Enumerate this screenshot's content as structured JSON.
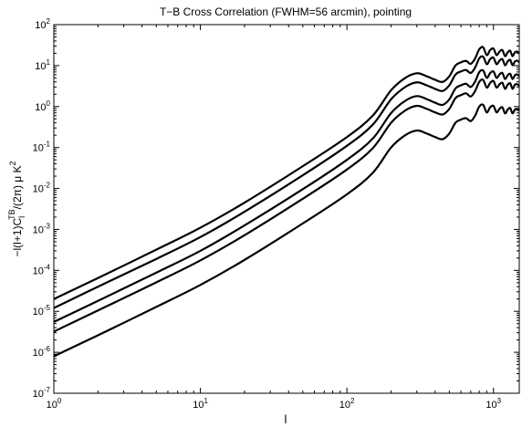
{
  "chart_data": {
    "type": "line",
    "title": "T−B Cross Correlation (FWHM=56 arcmin), pointing",
    "xlabel": "l",
    "ylabel_parts": {
      "prefix": "−l(l+1)C",
      "sub": "l",
      "sup": "TB",
      "middle": "/(2π) μ K",
      "sup2": "2"
    },
    "xscale": "log",
    "yscale": "log",
    "xlim": [
      1,
      1500
    ],
    "ylim": [
      1e-07,
      100
    ],
    "grid": false,
    "x_ticks": [
      {
        "value": 1,
        "base": "10",
        "exp": "0"
      },
      {
        "value": 10,
        "base": "10",
        "exp": "1"
      },
      {
        "value": 100,
        "base": "10",
        "exp": "2"
      },
      {
        "value": 1000,
        "base": "10",
        "exp": "3"
      }
    ],
    "y_ticks": [
      {
        "value": 1e-07,
        "base": "10",
        "exp": "-7"
      },
      {
        "value": 1e-06,
        "base": "10",
        "exp": "-6"
      },
      {
        "value": 1e-05,
        "base": "10",
        "exp": "-5"
      },
      {
        "value": 0.0001,
        "base": "10",
        "exp": "-4"
      },
      {
        "value": 0.001,
        "base": "10",
        "exp": "-3"
      },
      {
        "value": 0.01,
        "base": "10",
        "exp": "-2"
      },
      {
        "value": 0.1,
        "base": "10",
        "exp": "-1"
      },
      {
        "value": 1,
        "base": "10",
        "exp": "0"
      },
      {
        "value": 10,
        "base": "10",
        "exp": "1"
      },
      {
        "value": 100,
        "base": "10",
        "exp": "2"
      }
    ],
    "x": [
      1,
      2,
      5,
      10,
      20,
      50,
      100,
      150,
      200,
      250,
      300,
      350,
      400,
      450,
      500,
      550,
      600,
      650,
      700,
      750,
      800,
      850,
      900,
      950,
      1000,
      1050,
      1100,
      1150,
      1200,
      1250,
      1300,
      1350,
      1400,
      1450,
      1500
    ],
    "series": [
      {
        "values": [
          2e-05,
          6.5e-05,
          0.00032,
          0.0011,
          0.0045,
          0.035,
          0.18,
          0.6,
          2.5,
          5.0,
          6.5,
          5.5,
          4.5,
          4.0,
          5.5,
          10,
          12,
          13,
          11,
          15,
          25,
          28,
          18,
          24,
          26,
          18,
          22,
          24,
          17,
          21,
          23,
          17,
          21,
          22,
          20
        ]
      },
      {
        "values": [
          1.2e-05,
          4e-05,
          0.00019,
          0.00065,
          0.0027,
          0.021,
          0.11,
          0.36,
          1.5,
          3.0,
          3.9,
          3.3,
          2.7,
          2.4,
          3.3,
          6.0,
          7.2,
          7.8,
          6.6,
          9.0,
          15,
          16.5,
          10.8,
          14.4,
          15.6,
          10.8,
          13.2,
          14.4,
          10.2,
          12.6,
          13.8,
          10.2,
          12.6,
          13.2,
          12
        ]
      },
      {
        "values": [
          5.5e-06,
          1.8e-05,
          8.8e-05,
          0.0003,
          0.00125,
          0.0096,
          0.05,
          0.165,
          0.69,
          1.38,
          1.8,
          1.52,
          1.24,
          1.1,
          1.5,
          2.75,
          3.3,
          3.6,
          3.0,
          4.1,
          6.9,
          7.6,
          5.0,
          6.6,
          7.2,
          5.0,
          6.1,
          6.6,
          4.7,
          5.8,
          6.3,
          4.7,
          5.8,
          6.1,
          5.5
        ]
      },
      {
        "values": [
          3.2e-06,
          1.05e-05,
          5.1e-05,
          0.000175,
          0.00072,
          0.0056,
          0.029,
          0.096,
          0.4,
          0.8,
          1.04,
          0.88,
          0.72,
          0.64,
          0.88,
          1.6,
          1.9,
          2.1,
          1.76,
          2.4,
          4.0,
          4.5,
          2.9,
          3.8,
          4.2,
          2.9,
          3.5,
          3.8,
          2.7,
          3.4,
          3.7,
          2.7,
          3.4,
          3.5,
          3.2
        ]
      },
      {
        "values": [
          8e-07,
          2.6e-06,
          1.28e-05,
          4.4e-05,
          0.00018,
          0.0014,
          0.0072,
          0.024,
          0.1,
          0.2,
          0.26,
          0.22,
          0.18,
          0.16,
          0.22,
          0.4,
          0.48,
          0.52,
          0.44,
          0.6,
          1.0,
          1.1,
          0.72,
          0.96,
          1.04,
          0.72,
          0.88,
          0.96,
          0.68,
          0.84,
          0.92,
          0.68,
          0.84,
          0.88,
          0.8
        ]
      }
    ]
  }
}
